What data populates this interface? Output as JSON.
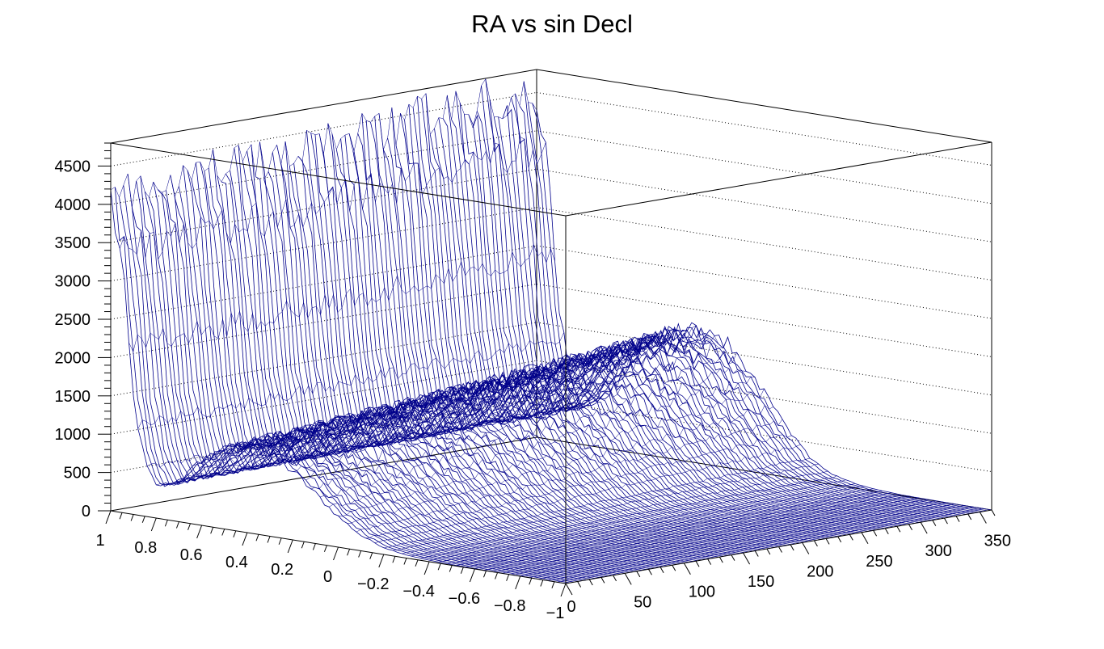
{
  "chart_data": {
    "type": "surface-lego",
    "title": "RA vs sin Decl",
    "xlabel": "",
    "ylabel": "",
    "zlabel": "",
    "x_ticks": [
      "50",
      "100",
      "150",
      "200",
      "250",
      "300",
      "350"
    ],
    "y_ticks": [
      "1",
      "0.8",
      "0.6",
      "0.4",
      "0.2",
      "0",
      "−0.2",
      "−0.4",
      "−0.6",
      "−0.8",
      "−1"
    ],
    "z_ticks": [
      "0",
      "500",
      "1000",
      "1500",
      "2000",
      "2500",
      "3000",
      "3500",
      "4000",
      "4500"
    ],
    "x_origin_label": "0",
    "xlim": [
      0,
      360
    ],
    "ylim": [
      -1,
      1
    ],
    "zlim": [
      0,
      4800
    ],
    "surface_color": "#00008b",
    "grid": true,
    "profile_at_ra_0": {
      "sin_decl": [
        1.0,
        0.95,
        0.9,
        0.85,
        0.8,
        0.7,
        0.6,
        0.5,
        0.4,
        0.3,
        0.2,
        0.1,
        0.0,
        -0.1,
        -0.2,
        -0.3,
        -0.4,
        -0.5,
        -0.6,
        -0.7,
        -0.8,
        -0.9,
        -1.0
      ],
      "counts": [
        4100,
        3200,
        1500,
        700,
        420,
        520,
        850,
        1050,
        1100,
        1050,
        900,
        650,
        400,
        200,
        90,
        40,
        20,
        10,
        5,
        3,
        2,
        1,
        0
      ]
    },
    "profile_at_ra_360": {
      "sin_decl": [
        1.0,
        0.95,
        0.9,
        0.85,
        0.8,
        0.7,
        0.6,
        0.5,
        0.4,
        0.3,
        0.2,
        0.1,
        0.0,
        -0.1,
        -0.2,
        -0.3,
        -0.4,
        -0.5,
        -0.6,
        -0.7,
        -0.8,
        -0.9,
        -1.0
      ],
      "counts": [
        4550,
        3600,
        1700,
        800,
        480,
        650,
        1050,
        1450,
        1650,
        1750,
        1700,
        1450,
        1050,
        650,
        300,
        130,
        60,
        25,
        10,
        5,
        2,
        1,
        0
      ]
    }
  }
}
